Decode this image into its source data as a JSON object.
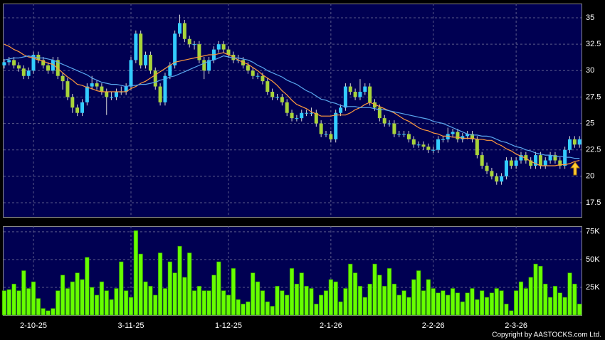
{
  "chart_data": [
    {
      "type": "candlestick",
      "categories": [
        null,
        null,
        null,
        null,
        null,
        null,
        "2-10-25",
        null,
        null,
        null,
        null,
        null,
        null,
        null,
        null,
        null,
        null,
        null,
        null,
        null,
        null,
        null,
        null,
        null,
        null,
        null,
        "3-11-25",
        null,
        null,
        null,
        null,
        null,
        null,
        null,
        null,
        null,
        null,
        null,
        null,
        null,
        null,
        null,
        null,
        null,
        null,
        null,
        "1-12-25",
        null,
        null,
        null,
        null,
        null,
        null,
        null,
        null,
        null,
        null,
        null,
        null,
        null,
        null,
        null,
        null,
        null,
        null,
        null,
        null,
        "2-1-26",
        null,
        null,
        null,
        null,
        null,
        null,
        null,
        null,
        null,
        null,
        null,
        null,
        null,
        null,
        null,
        null,
        null,
        null,
        null,
        null,
        "2-2-26",
        null,
        null,
        null,
        null,
        null,
        null,
        null,
        null,
        null,
        null,
        null,
        null,
        null,
        null,
        null,
        null,
        "2-3-26",
        null,
        null,
        null,
        null,
        null,
        null,
        null,
        null,
        null,
        null,
        null,
        null,
        null
      ],
      "open": [
        30.5,
        30.8,
        31.0,
        30.5,
        30.2,
        29.5,
        30.0,
        31.5,
        31.0,
        30.5,
        30.0,
        31.0,
        29.5,
        29.0,
        27.5,
        26.5,
        26.0,
        27.0,
        28.5,
        28.8,
        28.5,
        28.0,
        27.5,
        27.5,
        28.0,
        28.0,
        28.5,
        31.0,
        33.5,
        30.5,
        31.5,
        30.0,
        28.5,
        27.0,
        29.5,
        30.5,
        33.5,
        34.5,
        33.0,
        32.5,
        32.5,
        31.0,
        30.0,
        31.0,
        32.0,
        32.5,
        32.0,
        31.5,
        31.0,
        31.0,
        30.5,
        30.0,
        29.5,
        29.5,
        29.0,
        28.0,
        27.5,
        27.5,
        27.0,
        26.0,
        25.5,
        25.5,
        26.0,
        26.0,
        26.0,
        25.0,
        24.0,
        24.0,
        23.5,
        26.0,
        26.5,
        28.5,
        28.0,
        27.5,
        28.0,
        28.5,
        27.0,
        26.5,
        25.5,
        25.0,
        25.0,
        24.0,
        24.0,
        24.0,
        23.5,
        23.0,
        23.0,
        22.8,
        22.5,
        22.5,
        23.5,
        23.5,
        24.0,
        24.2,
        23.5,
        23.8,
        24.0,
        23.5,
        22.0,
        21.0,
        20.5,
        20.0,
        19.5,
        20.0,
        21.5,
        21.0,
        21.5,
        22.0,
        21.5,
        21.0,
        22.0,
        21.0,
        21.5,
        22.0,
        21.5,
        21.0,
        22.5,
        23.5,
        23.0
      ],
      "high": [
        31.1,
        31.3,
        31.3,
        30.8,
        30.5,
        30.3,
        31.8,
        31.8,
        31.3,
        30.8,
        31.3,
        31.3,
        29.8,
        29.3,
        27.8,
        26.8,
        27.3,
        28.8,
        29.5,
        29.1,
        28.8,
        28.3,
        28.0,
        28.3,
        28.5,
        28.8,
        31.3,
        33.8,
        33.8,
        31.8,
        31.8,
        30.3,
        28.8,
        29.8,
        30.8,
        33.8,
        35.3,
        34.8,
        33.3,
        32.8,
        32.8,
        31.3,
        31.3,
        32.3,
        32.8,
        32.8,
        32.3,
        31.8,
        31.5,
        31.3,
        30.8,
        30.3,
        29.8,
        29.8,
        29.3,
        28.3,
        27.8,
        27.8,
        27.3,
        26.3,
        25.8,
        26.3,
        26.3,
        26.5,
        26.3,
        25.3,
        24.3,
        24.3,
        26.3,
        26.8,
        28.8,
        28.8,
        28.3,
        29.2,
        28.8,
        28.8,
        27.3,
        26.8,
        25.8,
        25.3,
        25.3,
        24.3,
        24.3,
        24.3,
        23.8,
        23.3,
        23.3,
        23.1,
        22.8,
        23.8,
        23.8,
        24.6,
        24.5,
        24.5,
        24.1,
        24.3,
        24.3,
        23.8,
        22.3,
        21.3,
        20.8,
        20.3,
        20.3,
        21.8,
        21.8,
        21.8,
        22.3,
        22.3,
        21.8,
        22.3,
        22.3,
        21.8,
        22.3,
        22.3,
        21.8,
        22.8,
        23.8,
        23.8,
        23.8
      ],
      "low": [
        30.2,
        30.5,
        30.2,
        29.9,
        29.2,
        29.2,
        29.7,
        30.7,
        30.2,
        29.7,
        29.7,
        29.2,
        28.2,
        27.2,
        26.0,
        25.7,
        25.7,
        26.7,
        28.2,
        28.2,
        27.7,
        25.8,
        27.2,
        27.2,
        27.7,
        27.7,
        28.2,
        30.7,
        30.2,
        30.2,
        29.7,
        28.2,
        26.7,
        26.7,
        29.2,
        30.2,
        33.2,
        32.7,
        32.2,
        32.0,
        30.7,
        29.2,
        29.7,
        30.7,
        31.7,
        31.7,
        31.2,
        30.7,
        30.7,
        30.2,
        29.7,
        29.2,
        29.2,
        28.7,
        27.7,
        27.2,
        27.2,
        26.7,
        25.7,
        25.2,
        25.2,
        25.2,
        25.7,
        25.7,
        24.7,
        23.7,
        23.7,
        23.2,
        23.2,
        25.7,
        26.2,
        27.7,
        27.2,
        27.2,
        27.7,
        26.7,
        26.2,
        25.2,
        24.7,
        24.7,
        23.7,
        23.7,
        23.7,
        23.2,
        22.7,
        22.7,
        22.5,
        22.2,
        22.2,
        22.2,
        23.2,
        23.2,
        23.7,
        23.2,
        23.2,
        23.5,
        23.2,
        21.7,
        20.7,
        20.2,
        19.7,
        19.2,
        19.2,
        19.7,
        20.7,
        20.7,
        21.2,
        21.2,
        20.7,
        20.7,
        20.7,
        20.7,
        21.2,
        21.2,
        20.7,
        20.7,
        22.2,
        22.7,
        22.7
      ],
      "close": [
        30.8,
        31.0,
        30.5,
        30.2,
        29.5,
        30.0,
        31.5,
        31.0,
        30.5,
        30.0,
        31.0,
        29.5,
        29.0,
        27.5,
        26.5,
        26.0,
        27.0,
        28.5,
        28.8,
        28.5,
        28.0,
        27.5,
        27.5,
        28.0,
        28.0,
        28.5,
        31.0,
        33.5,
        30.5,
        31.5,
        30.0,
        28.5,
        27.0,
        29.5,
        30.5,
        33.5,
        34.5,
        33.0,
        32.5,
        32.5,
        31.0,
        30.0,
        31.0,
        32.0,
        32.5,
        32.0,
        31.5,
        31.0,
        31.0,
        30.5,
        30.0,
        29.5,
        29.5,
        29.0,
        28.0,
        27.5,
        27.5,
        27.0,
        26.0,
        25.5,
        25.5,
        26.0,
        26.0,
        26.0,
        25.0,
        24.0,
        24.0,
        23.5,
        26.0,
        26.5,
        28.5,
        28.0,
        27.5,
        28.0,
        28.5,
        27.0,
        26.5,
        25.5,
        25.0,
        25.0,
        24.0,
        24.0,
        24.0,
        23.5,
        23.0,
        23.0,
        22.8,
        22.5,
        22.5,
        23.5,
        23.5,
        24.0,
        24.2,
        23.5,
        23.8,
        24.0,
        23.5,
        22.0,
        21.0,
        20.5,
        20.0,
        19.5,
        20.0,
        21.5,
        21.0,
        21.5,
        22.0,
        21.5,
        21.0,
        22.0,
        21.0,
        21.5,
        22.0,
        21.5,
        21.0,
        22.5,
        23.5,
        23.0,
        23.5
      ],
      "up_color": "#33ccff",
      "down_color": "#a8d43a",
      "lines": [
        {
          "color": "#ff9a3c",
          "values": [
            32.5,
            32.3,
            32.0,
            31.8,
            31.5,
            31.3,
            31.2,
            31.0,
            30.9,
            30.7,
            30.6,
            30.2,
            29.8,
            29.4,
            29.1,
            28.7,
            28.6,
            28.4,
            28.3,
            28.1,
            28.0,
            28.0,
            28.0,
            28.0,
            28.0,
            28.0,
            28.3,
            28.5,
            28.8,
            29.0,
            29.3,
            29.6,
            29.9,
            30.2,
            30.5,
            30.8,
            30.9,
            31.0,
            31.1,
            31.2,
            31.3,
            31.4,
            31.5,
            31.5,
            31.6,
            31.7,
            31.5,
            31.3,
            31.0,
            30.8,
            30.6,
            30.3,
            30.0,
            29.6,
            29.3,
            29.0,
            28.6,
            28.1,
            27.7,
            27.2,
            26.8,
            26.6,
            26.4,
            26.1,
            25.9,
            25.7,
            25.7,
            25.7,
            25.8,
            25.8,
            25.8,
            26.0,
            26.3,
            26.5,
            26.8,
            27.0,
            26.8,
            26.6,
            26.4,
            26.2,
            26.0,
            25.7,
            25.4,
            25.2,
            24.9,
            24.6,
            24.4,
            24.3,
            24.1,
            24.0,
            23.8,
            23.8,
            23.7,
            23.7,
            23.6,
            23.6,
            23.6,
            23.5,
            23.5,
            23.4,
            23.4,
            23.1,
            22.9,
            22.6,
            22.4,
            22.1,
            21.9,
            21.7,
            21.4,
            21.2,
            21.0,
            21.0,
            21.0,
            21.0,
            21.1,
            21.1,
            21.2,
            21.4,
            21.5
          ]
        },
        {
          "color": "#5aa8f0",
          "values": [
            31.0,
            31.1,
            31.2,
            31.2,
            31.3,
            31.4,
            31.3,
            31.2,
            31.2,
            31.1,
            31.0,
            30.8,
            30.6,
            30.4,
            30.2,
            30.0,
            29.8,
            29.6,
            29.3,
            29.1,
            28.9,
            28.8,
            28.7,
            28.7,
            28.6,
            28.5,
            28.6,
            28.6,
            28.7,
            28.7,
            28.8,
            28.9,
            29.1,
            29.2,
            29.4,
            29.5,
            29.7,
            29.9,
            30.1,
            30.3,
            30.5,
            30.7,
            30.9,
            31.0,
            31.2,
            31.4,
            31.3,
            31.2,
            31.2,
            31.1,
            31.0,
            30.8,
            30.5,
            30.3,
            30.0,
            29.8,
            29.6,
            29.4,
            29.1,
            28.9,
            28.7,
            28.4,
            28.1,
            27.9,
            27.6,
            27.3,
            27.2,
            27.0,
            26.9,
            26.7,
            26.6,
            26.6,
            26.6,
            26.5,
            26.5,
            26.5,
            26.4,
            26.3,
            26.3,
            26.2,
            26.1,
            26.0,
            25.9,
            25.8,
            25.7,
            25.6,
            25.5,
            25.4,
            25.2,
            25.1,
            25.0,
            24.8,
            24.6,
            24.4,
            24.2,
            24.0,
            23.9,
            23.9,
            23.8,
            23.8,
            23.7,
            23.5,
            23.3,
            23.2,
            23.0,
            22.8,
            22.7,
            22.5,
            22.4,
            22.2,
            22.1,
            22.0,
            22.0,
            21.9,
            21.9,
            21.8,
            21.8,
            21.7,
            21.7
          ]
        }
      ],
      "ylim": [
        16.15,
        36.35
      ],
      "yticks": [
        17.5,
        20,
        22.5,
        25,
        27.5,
        30,
        32.5,
        35
      ],
      "grid": true
    },
    {
      "type": "bar",
      "color": "#66ff00",
      "values": [
        22000,
        23000,
        28000,
        22000,
        40000,
        24000,
        30000,
        15000,
        6000,
        4000,
        6000,
        22000,
        36000,
        24000,
        30000,
        38000,
        32000,
        52000,
        25000,
        18000,
        30000,
        22000,
        14000,
        24000,
        48000,
        22000,
        16000,
        76000,
        55000,
        30000,
        26000,
        18000,
        56000,
        24000,
        48000,
        38000,
        62000,
        34000,
        56000,
        22000,
        26000,
        22000,
        22000,
        36000,
        48000,
        22000,
        18000,
        42000,
        14000,
        10000,
        12000,
        38000,
        30000,
        22000,
        12000,
        8000,
        26000,
        22000,
        18000,
        42000,
        28000,
        38000,
        26000,
        24000,
        10000,
        18000,
        22000,
        32000,
        30000,
        12000,
        24000,
        46000,
        38000,
        26000,
        16000,
        28000,
        46000,
        36000,
        26000,
        42000,
        28000,
        18000,
        22000,
        16000,
        32000,
        40000,
        22000,
        32000,
        24000,
        20000,
        22000,
        18000,
        24000,
        20000,
        12000,
        20000,
        24000,
        14000,
        22000,
        16000,
        20000,
        24000,
        22000,
        10000,
        4000,
        22000,
        30000,
        24000,
        34000,
        46000,
        44000,
        28000,
        16000,
        26000,
        20000,
        16000,
        38000,
        28000,
        10000
      ],
      "ylim": [
        0,
        80000
      ],
      "yticks": [
        {
          "value": 25000,
          "label": "25K"
        },
        {
          "value": 50000,
          "label": "50K"
        },
        {
          "value": 75000,
          "label": "75K"
        }
      ],
      "grid": true
    }
  ],
  "copyright": "Copyright by AASTOCKS.com Ltd."
}
